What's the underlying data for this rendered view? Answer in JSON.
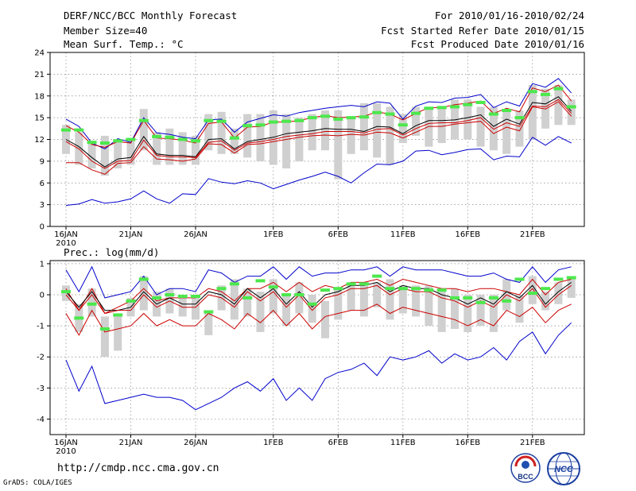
{
  "header": {
    "title": "DERF/NCC/BCC Monthly Forecast",
    "member_size": "Member Size=40",
    "variable1": "Mean Surf. Temp.: °C",
    "period": "For 2010/01/16-2010/02/24",
    "fcst_started": "Fcst Started Refer Date 2010/01/15",
    "fcst_produced": "Fcst Produced Date 2010/01/16"
  },
  "footer": {
    "url": "http://cmdp.ncc.cma.gov.cn",
    "credit": "GrADS: COLA/IGES",
    "logo_left": "BCC",
    "logo_right": "NCC"
  },
  "colors": {
    "max_min": "#0000cc",
    "upper": "#cc0000",
    "mean": "#000000",
    "box": "#d0d0d0",
    "obs": "#4ce84c"
  },
  "chart_data": [
    {
      "type": "line",
      "title": "Mean Surf. Temp.: °C",
      "ylim": [
        0,
        24
      ],
      "yticks": [
        0,
        3,
        6,
        9,
        12,
        15,
        18,
        21,
        24
      ],
      "xticks": [
        {
          "day": 0,
          "label": "16JAN"
        },
        {
          "day": 5,
          "label": "21JAN"
        },
        {
          "day": 10,
          "label": "26JAN"
        },
        {
          "day": 16,
          "label": "1FEB"
        },
        {
          "day": 21,
          "label": "6FEB"
        },
        {
          "day": 26,
          "label": "11FEB"
        },
        {
          "day": 31,
          "label": "16FEB"
        },
        {
          "day": 36,
          "label": "21FEB"
        }
      ],
      "xtick_sublabel": "2010",
      "days": 40,
      "series": [
        {
          "name": "max",
          "values": [
            14.8,
            13.8,
            11.5,
            10.7,
            12.1,
            11.6,
            15.0,
            12.9,
            12.7,
            12.3,
            12.1,
            14.7,
            14.8,
            13.0,
            14.4,
            14.9,
            15.4,
            15.2,
            15.7,
            16.0,
            16.3,
            16.5,
            16.7,
            16.5,
            17.2,
            17.0,
            14.8,
            16.6,
            17.2,
            17.1,
            17.7,
            17.8,
            18.2,
            16.4,
            17.2,
            16.6,
            19.7,
            19.2,
            20.4,
            18.4
          ]
        },
        {
          "name": "upper",
          "values": [
            13.9,
            13.0,
            11.3,
            10.9,
            11.7,
            11.5,
            14.6,
            12.2,
            12.1,
            11.9,
            11.5,
            14.2,
            14.4,
            12.2,
            13.7,
            13.8,
            14.4,
            14.4,
            14.6,
            15.0,
            15.3,
            15.0,
            15.1,
            15.2,
            15.8,
            15.5,
            14.7,
            15.6,
            16.4,
            16.4,
            16.8,
            17.0,
            17.3,
            15.6,
            16.3,
            15.8,
            19.1,
            18.6,
            19.5,
            17.3
          ]
        },
        {
          "name": "mean",
          "values": [
            12.0,
            11.0,
            9.5,
            8.2,
            9.3,
            9.5,
            12.4,
            10.0,
            9.8,
            9.8,
            9.6,
            12.0,
            12.1,
            10.7,
            11.7,
            12.0,
            12.3,
            12.8,
            13.0,
            13.2,
            13.5,
            13.4,
            13.4,
            13.1,
            13.8,
            13.7,
            12.8,
            13.9,
            14.6,
            14.6,
            14.7,
            15.0,
            15.4,
            13.8,
            14.8,
            14.1,
            17.1,
            16.9,
            17.9,
            15.9
          ]
        },
        {
          "name": "mean2",
          "values": [
            11.7,
            10.7,
            9.0,
            8.0,
            9.0,
            9.1,
            11.9,
            9.8,
            9.6,
            9.6,
            9.5,
            11.6,
            11.8,
            10.5,
            11.5,
            11.7,
            12.0,
            12.4,
            12.6,
            12.8,
            13.1,
            13.1,
            13.1,
            12.9,
            13.4,
            13.5,
            12.6,
            13.5,
            14.2,
            14.3,
            14.3,
            14.6,
            15.0,
            13.4,
            14.3,
            13.8,
            16.6,
            16.5,
            17.5,
            15.6
          ]
        },
        {
          "name": "lower",
          "values": [
            8.8,
            8.8,
            7.8,
            7.2,
            8.7,
            8.8,
            11.0,
            9.3,
            9.2,
            9.0,
            9.3,
            11.4,
            11.3,
            10.1,
            11.3,
            11.4,
            11.7,
            12.0,
            12.3,
            12.5,
            12.6,
            12.5,
            12.7,
            12.6,
            13.0,
            12.9,
            12.2,
            13.0,
            13.8,
            13.8,
            14.1,
            14.3,
            14.5,
            12.8,
            13.7,
            13.2,
            16.5,
            16.2,
            17.2,
            15.2
          ]
        },
        {
          "name": "min",
          "values": [
            2.9,
            3.1,
            3.7,
            3.2,
            3.4,
            3.8,
            4.9,
            3.8,
            3.2,
            4.5,
            4.4,
            6.6,
            6.1,
            5.9,
            6.3,
            6.0,
            5.2,
            5.8,
            6.4,
            6.9,
            7.5,
            6.9,
            6.0,
            7.4,
            8.6,
            8.5,
            9.0,
            10.4,
            10.5,
            9.9,
            10.2,
            10.6,
            10.7,
            9.2,
            9.7,
            9.6,
            12.3,
            11.2,
            12.4,
            11.5
          ]
        }
      ],
      "boxes": [
        {
          "lo": 10.0,
          "hi": 14.0
        },
        {
          "lo": 8.5,
          "hi": 13.0
        },
        {
          "lo": 8.0,
          "hi": 11.8
        },
        {
          "lo": 7.0,
          "hi": 12.5
        },
        {
          "lo": 8.0,
          "hi": 12.0
        },
        {
          "lo": 8.5,
          "hi": 12.0
        },
        {
          "lo": 10.5,
          "hi": 16.2
        },
        {
          "lo": 8.5,
          "hi": 13.0
        },
        {
          "lo": 8.5,
          "hi": 13.5
        },
        {
          "lo": 8.5,
          "hi": 13.0
        },
        {
          "lo": 8.5,
          "hi": 12.5
        },
        {
          "lo": 10.5,
          "hi": 15.5
        },
        {
          "lo": 10.0,
          "hi": 15.8
        },
        {
          "lo": 10.0,
          "hi": 13.5
        },
        {
          "lo": 9.5,
          "hi": 15.5
        },
        {
          "lo": 9.0,
          "hi": 15.5
        },
        {
          "lo": 8.5,
          "hi": 16.0
        },
        {
          "lo": 8.0,
          "hi": 15.5
        },
        {
          "lo": 9.0,
          "hi": 15.0
        },
        {
          "lo": 10.5,
          "hi": 15.5
        },
        {
          "lo": 10.5,
          "hi": 16.0
        },
        {
          "lo": 6.5,
          "hi": 16.0
        },
        {
          "lo": 10.0,
          "hi": 15.0
        },
        {
          "lo": 10.5,
          "hi": 17.0
        },
        {
          "lo": 9.5,
          "hi": 17.0
        },
        {
          "lo": 8.5,
          "hi": 16.5
        },
        {
          "lo": 11.5,
          "hi": 15.5
        },
        {
          "lo": 12.5,
          "hi": 16.5
        },
        {
          "lo": 11.0,
          "hi": 16.5
        },
        {
          "lo": 11.5,
          "hi": 16.5
        },
        {
          "lo": 12.0,
          "hi": 17.5
        },
        {
          "lo": 12.0,
          "hi": 17.5
        },
        {
          "lo": 11.0,
          "hi": 16.5
        },
        {
          "lo": 10.5,
          "hi": 16.5
        },
        {
          "lo": 10.0,
          "hi": 16.0
        },
        {
          "lo": 11.0,
          "hi": 16.0
        },
        {
          "lo": 12.0,
          "hi": 19.5
        },
        {
          "lo": 13.5,
          "hi": 19.0
        },
        {
          "lo": 14.0,
          "hi": 19.5
        },
        {
          "lo": 14.0,
          "hi": 17.5
        }
      ],
      "observed": [
        13.3,
        13.3,
        11.6,
        11.5,
        11.8,
        12.0,
        14.6,
        12.4,
        12.3,
        12.0,
        11.8,
        14.6,
        14.5,
        12.2,
        13.9,
        14.0,
        14.4,
        14.5,
        14.6,
        15.0,
        15.2,
        14.8,
        15.0,
        15.1,
        15.7,
        15.5,
        14.0,
        15.6,
        16.3,
        16.4,
        16.5,
        16.8,
        17.1,
        15.5,
        16.0,
        15.0,
        18.6,
        18.2,
        19.0,
        16.5
      ]
    },
    {
      "type": "line",
      "title": "Prec.: log(mm/d)",
      "ylim": [
        -4.5,
        1.1
      ],
      "yticks": [
        -4,
        -3,
        -2,
        -1,
        0,
        1
      ],
      "xticks": [
        {
          "day": 0,
          "label": "16JAN"
        },
        {
          "day": 5,
          "label": "21JAN"
        },
        {
          "day": 10,
          "label": "26JAN"
        },
        {
          "day": 16,
          "label": "1FEB"
        },
        {
          "day": 21,
          "label": "6FEB"
        },
        {
          "day": 26,
          "label": "11FEB"
        },
        {
          "day": 31,
          "label": "16FEB"
        },
        {
          "day": 36,
          "label": "21FEB"
        }
      ],
      "xtick_sublabel": "2010",
      "days": 40,
      "series": [
        {
          "name": "max",
          "values": [
            0.8,
            0.1,
            0.9,
            -0.1,
            0.0,
            0.1,
            0.6,
            0.0,
            0.2,
            0.2,
            0.1,
            0.8,
            0.7,
            0.4,
            0.6,
            0.6,
            0.9,
            0.5,
            0.9,
            0.6,
            0.7,
            0.7,
            0.8,
            0.8,
            0.9,
            0.6,
            0.9,
            0.8,
            0.8,
            0.8,
            0.7,
            0.6,
            0.6,
            0.7,
            0.5,
            0.4,
            0.9,
            0.4,
            0.8,
            0.9
          ]
        },
        {
          "name": "upper",
          "values": [
            0.2,
            -0.5,
            0.2,
            -0.6,
            -0.4,
            -0.2,
            0.2,
            -0.2,
            -0.1,
            -0.1,
            -0.1,
            0.2,
            0.1,
            -0.2,
            0.2,
            0.2,
            0.4,
            0.1,
            0.4,
            0.1,
            0.3,
            0.2,
            0.4,
            0.4,
            0.5,
            0.3,
            0.5,
            0.4,
            0.3,
            0.2,
            0.2,
            0.1,
            0.2,
            0.2,
            0.1,
            0.0,
            0.5,
            0.0,
            0.4,
            0.5
          ]
        },
        {
          "name": "mean",
          "values": [
            0.1,
            -0.4,
            0.1,
            -0.5,
            -0.5,
            -0.4,
            0.1,
            -0.3,
            -0.1,
            -0.3,
            -0.3,
            0.1,
            0.0,
            -0.3,
            0.2,
            -0.1,
            0.2,
            -0.3,
            0.1,
            -0.4,
            0.0,
            0.1,
            0.3,
            0.3,
            0.4,
            0.1,
            0.3,
            0.2,
            0.2,
            0.0,
            -0.1,
            -0.3,
            -0.1,
            -0.3,
            0.1,
            -0.1,
            0.3,
            -0.3,
            0.1,
            0.4
          ]
        },
        {
          "name": "mean2",
          "values": [
            0.0,
            -0.5,
            0.0,
            -0.6,
            -0.5,
            -0.5,
            0.0,
            -0.4,
            -0.2,
            -0.4,
            -0.4,
            0.0,
            -0.1,
            -0.4,
            0.1,
            -0.2,
            0.1,
            -0.4,
            0.0,
            -0.5,
            -0.1,
            0.0,
            0.2,
            0.2,
            0.3,
            0.0,
            0.2,
            0.1,
            0.1,
            -0.1,
            -0.2,
            -0.4,
            -0.2,
            -0.4,
            0.0,
            -0.2,
            0.2,
            -0.4,
            0.0,
            0.3
          ]
        },
        {
          "name": "lower",
          "values": [
            -0.6,
            -1.3,
            -0.5,
            -1.2,
            -1.1,
            -1.0,
            -0.6,
            -1.0,
            -0.8,
            -1.0,
            -1.0,
            -0.6,
            -0.8,
            -1.1,
            -0.6,
            -0.9,
            -0.5,
            -1.0,
            -0.6,
            -1.1,
            -0.7,
            -0.6,
            -0.5,
            -0.5,
            -0.3,
            -0.6,
            -0.4,
            -0.5,
            -0.6,
            -0.7,
            -0.8,
            -1.0,
            -0.8,
            -1.0,
            -0.5,
            -0.7,
            -0.4,
            -0.9,
            -0.5,
            -0.3
          ]
        },
        {
          "name": "min",
          "values": [
            -2.1,
            -3.1,
            -2.3,
            -3.5,
            -3.4,
            -3.3,
            -3.2,
            -3.3,
            -3.3,
            -3.4,
            -3.7,
            -3.5,
            -3.3,
            -3.0,
            -2.8,
            -3.1,
            -2.7,
            -3.4,
            -3.0,
            -3.4,
            -2.7,
            -2.5,
            -2.4,
            -2.2,
            -2.6,
            -2.0,
            -2.1,
            -2.0,
            -1.8,
            -2.2,
            -1.9,
            -2.1,
            -2.0,
            -1.7,
            -2.1,
            -1.5,
            -1.2,
            -1.9,
            -1.3,
            -0.9
          ]
        }
      ],
      "boxes": [
        {
          "lo": -0.2,
          "hi": 0.3
        },
        {
          "lo": -1.2,
          "hi": -0.3
        },
        {
          "lo": -0.7,
          "hi": 0.2
        },
        {
          "lo": -2.0,
          "hi": -0.7
        },
        {
          "lo": -1.8,
          "hi": -0.6
        },
        {
          "lo": -0.7,
          "hi": -0.1
        },
        {
          "lo": -0.5,
          "hi": 0.6
        },
        {
          "lo": -0.7,
          "hi": 0.1
        },
        {
          "lo": -0.6,
          "hi": 0.2
        },
        {
          "lo": -0.7,
          "hi": 0.0
        },
        {
          "lo": -0.8,
          "hi": 0.0
        },
        {
          "lo": -1.3,
          "hi": -0.5
        },
        {
          "lo": -0.5,
          "hi": 0.3
        },
        {
          "lo": -0.8,
          "hi": 0.5
        },
        {
          "lo": -0.7,
          "hi": 0.2
        },
        {
          "lo": -1.2,
          "hi": 0.1
        },
        {
          "lo": -0.6,
          "hi": 0.5
        },
        {
          "lo": -1.0,
          "hi": 0.0
        },
        {
          "lo": -0.6,
          "hi": 0.4
        },
        {
          "lo": -0.9,
          "hi": 0.0
        },
        {
          "lo": -1.4,
          "hi": -0.2
        },
        {
          "lo": -0.8,
          "hi": 0.2
        },
        {
          "lo": -0.5,
          "hi": 0.3
        },
        {
          "lo": -0.7,
          "hi": 0.3
        },
        {
          "lo": -0.4,
          "hi": 0.4
        },
        {
          "lo": -0.8,
          "hi": 0.5
        },
        {
          "lo": -0.6,
          "hi": 0.3
        },
        {
          "lo": -0.7,
          "hi": 0.3
        },
        {
          "lo": -1.0,
          "hi": 0.3
        },
        {
          "lo": -1.2,
          "hi": 0.2
        },
        {
          "lo": -1.1,
          "hi": 0.2
        },
        {
          "lo": -1.2,
          "hi": 0.0
        },
        {
          "lo": -1.0,
          "hi": 0.0
        },
        {
          "lo": -1.2,
          "hi": 0.0
        },
        {
          "lo": -0.5,
          "hi": 0.5
        },
        {
          "lo": -0.9,
          "hi": 0.0
        },
        {
          "lo": -0.3,
          "hi": 0.6
        },
        {
          "lo": -0.5,
          "hi": 0.1
        },
        {
          "lo": -0.3,
          "hi": 0.4
        },
        {
          "lo": -0.1,
          "hi": 0.6
        }
      ],
      "observed": [
        0.1,
        -0.75,
        -0.3,
        -1.1,
        -0.65,
        -0.2,
        0.5,
        -0.1,
        0.0,
        -0.05,
        -0.05,
        -0.55,
        0.2,
        0.35,
        -0.1,
        0.45,
        0.25,
        0.0,
        0.0,
        -0.3,
        0.15,
        0.2,
        0.35,
        0.35,
        0.6,
        0.2,
        0.2,
        0.2,
        0.15,
        0.15,
        -0.1,
        -0.1,
        -0.25,
        -0.1,
        -0.2,
        0.5,
        0.05,
        0.2,
        0.5,
        0.55
      ]
    }
  ]
}
